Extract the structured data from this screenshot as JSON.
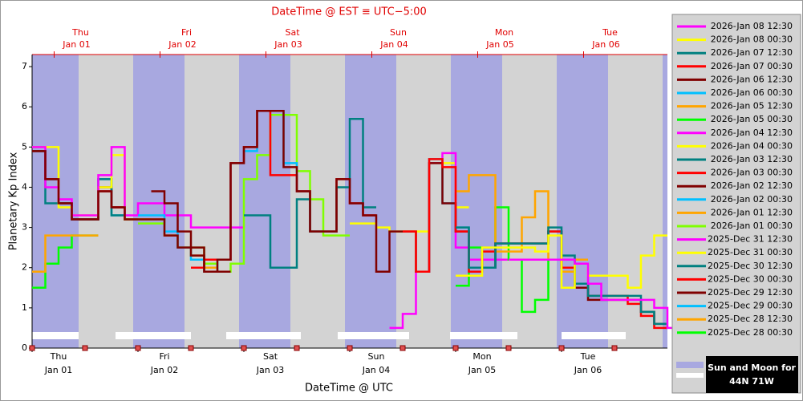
{
  "chart_data": {
    "type": "step-line",
    "title": "DateTime @ EST ≡ UTC−5:00",
    "xlabel": "DateTime @ UTC",
    "ylabel": "Planetary Kp Index",
    "xlim": [
      0,
      144
    ],
    "ylim": [
      0,
      7.3
    ],
    "yticks": [
      0,
      1,
      2,
      3,
      4,
      5,
      6,
      7
    ],
    "xticks": [
      {
        "value": 0,
        "label": "Jan 01",
        "day": "Thu"
      },
      {
        "value": 24,
        "label": "Jan 02",
        "day": "Fri"
      },
      {
        "value": 48,
        "label": "Jan 03",
        "day": "Sat"
      },
      {
        "value": 72,
        "label": "Jan 04",
        "day": "Sun"
      },
      {
        "value": 96,
        "label": "Jan 05",
        "day": "Mon"
      },
      {
        "value": 120,
        "label": "Jan 06",
        "day": "Tue"
      }
    ],
    "x2ticks": [
      {
        "value": 5,
        "label": "Jan 01",
        "day": "Thu"
      },
      {
        "value": 29,
        "label": "Jan 02",
        "day": "Fri"
      },
      {
        "value": 53,
        "label": "Jan 03",
        "day": "Sat"
      },
      {
        "value": 77,
        "label": "Jan 04",
        "day": "Sun"
      },
      {
        "value": 101,
        "label": "Jan 05",
        "day": "Mon"
      },
      {
        "value": 125,
        "label": "Jan 06",
        "day": "Tue"
      }
    ],
    "legend_note": {
      "title": "Sun and Moon for",
      "location": "44N 71W"
    },
    "series": [
      {
        "name": "2026-Jan 08 12:30",
        "color": "#ff00ff",
        "x": [
          108,
          111,
          114,
          117,
          120,
          123,
          126,
          129,
          132,
          135,
          138,
          141,
          144,
          147
        ],
        "values": [
          2.2,
          2.2,
          2.2,
          2.2,
          2.2,
          2.1,
          1.6,
          1.2,
          1.2,
          1.2,
          1.2,
          1.0,
          0.5,
          0.5
        ]
      },
      {
        "name": "2026-Jan 08 00:30",
        "color": "#ffff00",
        "x": [
          96,
          99,
          102,
          105,
          108,
          111,
          114,
          117,
          120,
          123,
          126,
          129,
          132,
          135,
          138,
          141
        ],
        "values": [
          1.8,
          1.8,
          2.5,
          2.5,
          2.5,
          2.5,
          2.4,
          2.8,
          1.5,
          2.1,
          1.8,
          1.8,
          1.8,
          1.5,
          2.3,
          2.8
        ]
      },
      {
        "name": "2026-Jan 07 12:30",
        "color": "#008080",
        "x": [
          96,
          99,
          102,
          105,
          108,
          111,
          114,
          117,
          120,
          123,
          126,
          129,
          132,
          135,
          138,
          141
        ],
        "values": [
          3.0,
          2.0,
          2.0,
          2.6,
          2.6,
          2.6,
          2.6,
          3.0,
          2.3,
          1.6,
          1.3,
          1.3,
          1.3,
          1.3,
          0.9,
          0.6
        ]
      },
      {
        "name": "2026-Jan 07 00:30",
        "color": "#ff0000",
        "x": [
          84,
          87,
          90,
          93,
          96,
          99,
          102,
          105,
          108,
          111,
          114,
          117,
          120,
          123,
          126,
          129,
          132,
          135,
          138,
          141
        ],
        "values": [
          2.9,
          1.9,
          4.7,
          4.5,
          2.9,
          1.9,
          2.4,
          2.6,
          2.6,
          2.6,
          2.6,
          2.9,
          2.0,
          1.6,
          1.3,
          1.3,
          1.3,
          1.1,
          0.8,
          0.5
        ]
      },
      {
        "name": "2026-Jan 06 12:30",
        "color": "#800000",
        "x": [
          0,
          3,
          6,
          9,
          12,
          15,
          18,
          21,
          24,
          27,
          30,
          33,
          36,
          39,
          42,
          45,
          48,
          51,
          54,
          57,
          60,
          63,
          66,
          69,
          72,
          75,
          78,
          81,
          84,
          87,
          90,
          93,
          96,
          99,
          102,
          105,
          108,
          111,
          114,
          117,
          120,
          123,
          126,
          129,
          132,
          135,
          138,
          141
        ],
        "values": [
          4.9,
          4.2,
          3.6,
          3.2,
          3.2,
          3.9,
          3.5,
          3.2,
          3.2,
          3.2,
          2.8,
          2.5,
          2.5,
          1.9,
          2.2,
          4.6,
          5.0,
          5.9,
          5.9,
          4.5,
          3.9,
          2.9,
          2.9,
          4.2,
          3.6,
          3.3,
          1.9,
          2.9,
          2.9,
          1.9,
          4.6,
          3.6,
          2.9,
          2.0,
          2.0,
          2.6,
          2.6,
          2.6,
          2.6,
          2.9,
          2.0,
          1.5,
          1.2,
          1.2,
          1.2,
          1.2,
          0.9,
          0.6
        ]
      },
      {
        "name": "2026-Jan 06 00:30",
        "color": "#00bfff",
        "x": [
          87,
          90,
          93,
          96,
          99,
          102,
          105,
          108,
          111,
          114,
          117,
          120,
          123,
          126
        ],
        "values": [
          1.9,
          4.7,
          3.6,
          3.0,
          2.0,
          2.0,
          2.6,
          2.6,
          2.6,
          2.6,
          2.9,
          2.2,
          1.6,
          1.3
        ]
      },
      {
        "name": "2026-Jan 05 12:30",
        "color": "#ffa500",
        "x": [
          96,
          99,
          102,
          105,
          108,
          111,
          114,
          117,
          120,
          123
        ],
        "values": [
          3.9,
          4.3,
          4.3,
          2.4,
          2.4,
          3.25,
          3.9,
          2.2,
          1.9,
          2.2
        ]
      },
      {
        "name": "2026-Jan 05 00:30",
        "color": "#00ff00",
        "x": [
          96,
          99,
          102,
          105,
          108,
          111,
          114,
          117
        ],
        "values": [
          1.55,
          2.5,
          2.0,
          3.5,
          2.2,
          0.9,
          1.2,
          2.2
        ]
      },
      {
        "name": "2026-Jan 04 12:30",
        "color": "#ff00ff",
        "x": [
          81,
          84,
          87,
          90,
          93,
          96,
          99,
          102,
          105,
          108,
          111,
          114
        ],
        "values": [
          0.5,
          0.85,
          1.9,
          4.6,
          4.85,
          2.5,
          2.2,
          2.2,
          2.2,
          2.2,
          2.2,
          2.2
        ]
      },
      {
        "name": "2026-Jan 04 00:30",
        "color": "#ffff00",
        "x": [
          72,
          75,
          78,
          81,
          84,
          87,
          90,
          93,
          96
        ],
        "values": [
          3.1,
          3.1,
          3.0,
          2.9,
          2.9,
          2.9,
          4.6,
          4.6,
          3.5
        ]
      },
      {
        "name": "2026-Jan 03 12:30",
        "color": "#008080",
        "x": [
          48,
          51,
          54,
          57,
          60,
          63,
          66,
          69,
          72,
          75
        ],
        "values": [
          3.3,
          3.3,
          2.0,
          2.0,
          3.7,
          2.9,
          2.9,
          4.0,
          5.7,
          3.5
        ]
      },
      {
        "name": "2026-Jan 03 00:30",
        "color": "#ff0000",
        "x": [
          36,
          39,
          42,
          45,
          48,
          51,
          54,
          57,
          60,
          63,
          66,
          69,
          72,
          75
        ],
        "values": [
          2.0,
          2.2,
          2.2,
          4.6,
          5.0,
          5.9,
          4.3,
          4.3,
          3.9,
          2.9,
          2.9,
          4.2,
          3.6,
          3.3
        ]
      },
      {
        "name": "2026-Jan 02 12:30",
        "color": "#800000",
        "x": [
          27,
          30,
          33,
          36,
          39,
          42
        ],
        "values": [
          3.9,
          3.6,
          2.9,
          2.3,
          1.9,
          1.9
        ]
      },
      {
        "name": "2026-Jan 02 00:30",
        "color": "#00bfff",
        "x": [
          24,
          27,
          30,
          33,
          36,
          39,
          42,
          45,
          48,
          51,
          54,
          57,
          60,
          63
        ],
        "values": [
          3.3,
          3.3,
          2.9,
          2.5,
          2.2,
          1.9,
          2.2,
          4.6,
          4.9,
          5.9,
          5.9,
          4.6,
          3.9,
          2.9
        ]
      },
      {
        "name": "2026-Jan 01 12:30",
        "color": "#ffa500",
        "x": [
          24,
          27,
          30,
          33,
          36,
          39
        ],
        "values": [
          3.2,
          3.2,
          2.8,
          2.5,
          2.3,
          2.0
        ]
      },
      {
        "name": "2026-Jan 01 00:30",
        "color": "#7fff00",
        "x": [
          24,
          27,
          30,
          33,
          36,
          39,
          42,
          45,
          48,
          51,
          54,
          57,
          60,
          63,
          66,
          69
        ],
        "values": [
          3.1,
          3.1,
          2.8,
          2.5,
          2.5,
          2.1,
          1.9,
          2.1,
          4.2,
          4.8,
          5.8,
          5.8,
          4.4,
          3.7,
          2.8,
          2.8
        ]
      },
      {
        "name": "2025-Dec 31 12:30",
        "color": "#ff00ff",
        "x": [
          0,
          3,
          6,
          9,
          12,
          15,
          18,
          21,
          24,
          27,
          30,
          33,
          36,
          39,
          42,
          45
        ],
        "values": [
          5.0,
          4.0,
          3.7,
          3.3,
          3.3,
          4.3,
          5.0,
          3.3,
          3.6,
          3.6,
          3.3,
          3.3,
          3.0,
          3.0,
          3.0,
          3.0
        ]
      },
      {
        "name": "2025-Dec 31 00:30",
        "color": "#ffff00",
        "x": [
          0,
          3,
          6,
          9,
          12,
          15,
          18,
          21,
          24
        ],
        "values": [
          5.0,
          5.0,
          3.5,
          3.3,
          3.3,
          4.0,
          4.8,
          3.2,
          3.2
        ]
      },
      {
        "name": "2025-Dec 30 12:30",
        "color": "#008080",
        "x": [
          0,
          3,
          6,
          9,
          12,
          15,
          18,
          21,
          24
        ],
        "values": [
          4.9,
          3.6,
          3.6,
          3.2,
          3.2,
          4.2,
          3.3,
          3.2,
          3.2
        ]
      },
      {
        "name": "2025-Dec 30 00:30",
        "color": "#ff0000",
        "x": [
          0,
          3,
          6,
          9,
          12,
          15,
          18,
          21
        ],
        "values": [
          4.9,
          4.2,
          3.6,
          3.2,
          3.2,
          3.9,
          3.5,
          3.2
        ]
      },
      {
        "name": "2025-Dec 29 12:30",
        "color": "#800000",
        "x": [
          0,
          3,
          6,
          9,
          12,
          15,
          18,
          21
        ],
        "values": [
          4.9,
          4.2,
          3.6,
          3.2,
          3.2,
          4.0,
          3.5,
          3.2
        ]
      },
      {
        "name": "2025-Dec 29 00:30",
        "color": "#00bfff",
        "x": [
          0,
          3,
          6,
          9,
          12,
          15,
          18,
          21
        ],
        "values": [
          4.9,
          4.2,
          3.6,
          3.2,
          3.2,
          4.2,
          3.3,
          3.2
        ]
      },
      {
        "name": "2025-Dec 28 12:30",
        "color": "#ffa500",
        "x": [
          0,
          3,
          6,
          9,
          12
        ],
        "values": [
          1.9,
          2.8,
          2.8,
          2.8,
          2.8
        ]
      },
      {
        "name": "2025-Dec 28 00:30",
        "color": "#00ff00",
        "x": [
          0,
          3,
          6,
          9,
          12
        ],
        "values": [
          1.5,
          2.1,
          2.5,
          2.8,
          2.8
        ]
      }
    ]
  }
}
